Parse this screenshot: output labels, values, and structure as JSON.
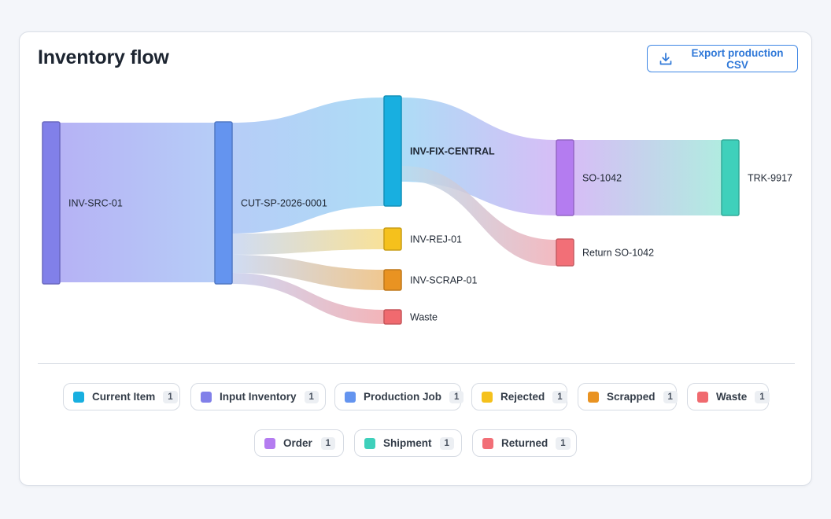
{
  "header": {
    "title": "Inventory flow",
    "export_label": "Export production CSV",
    "export_icon": "download-icon"
  },
  "nodes": [
    {
      "id": "INV-SRC-01",
      "label": "INV-SRC-01",
      "type": "input_inventory",
      "color": "#8180e9"
    },
    {
      "id": "CUT-SP-2026-0001",
      "label": "CUT-SP-2026-0001",
      "type": "production_job",
      "color": "#6494ef"
    },
    {
      "id": "INV-FIX-CENTRAL",
      "label": "INV-FIX-CENTRAL",
      "type": "current_item",
      "color": "#18afe0",
      "bold": true
    },
    {
      "id": "INV-REJ-01",
      "label": "INV-REJ-01",
      "type": "rejected",
      "color": "#f5c11c"
    },
    {
      "id": "INV-SCRAP-01",
      "label": "INV-SCRAP-01",
      "type": "scrapped",
      "color": "#e99322"
    },
    {
      "id": "Waste",
      "label": "Waste",
      "type": "waste",
      "color": "#f06a6f"
    },
    {
      "id": "SO-1042",
      "label": "SO-1042",
      "type": "order",
      "color": "#b47cf0"
    },
    {
      "id": "Return SO-1042",
      "label": "Return SO-1042",
      "type": "returned",
      "color": "#f26f77"
    },
    {
      "id": "TRK-9917",
      "label": "TRK-9917",
      "type": "shipment",
      "color": "#3fd0bb"
    }
  ],
  "links": [
    {
      "source": "INV-SRC-01",
      "target": "CUT-SP-2026-0001",
      "from_color": "#a9a5f3",
      "to_color": "#a9c4f6"
    },
    {
      "source": "CUT-SP-2026-0001",
      "target": "INV-FIX-CENTRAL",
      "from_color": "#a9c4f6",
      "to_color": "#9fd6f4"
    },
    {
      "source": "CUT-SP-2026-0001",
      "target": "INV-REJ-01",
      "from_color": "#c7d6f2",
      "to_color": "#f7dc87"
    },
    {
      "source": "CUT-SP-2026-0001",
      "target": "INV-SCRAP-01",
      "from_color": "#c7d6f2",
      "to_color": "#edbe7d"
    },
    {
      "source": "CUT-SP-2026-0001",
      "target": "Waste",
      "from_color": "#c7d0ee",
      "to_color": "#f1a8ad"
    },
    {
      "source": "INV-FIX-CENTRAL",
      "target": "SO-1042",
      "from_color": "#9fd6f4",
      "to_color": "#cfb2f4"
    },
    {
      "source": "INV-FIX-CENTRAL",
      "target": "Return SO-1042",
      "from_color": "#b9dcef",
      "to_color": "#f1aeb6"
    },
    {
      "source": "SO-1042",
      "target": "TRK-9917",
      "from_color": "#cfb2f4",
      "to_color": "#a3e8db"
    }
  ],
  "legend": [
    {
      "label": "Current Item",
      "count": "1",
      "color": "#18afe0"
    },
    {
      "label": "Input Inventory",
      "count": "1",
      "color": "#8180e9"
    },
    {
      "label": "Production Job",
      "count": "1",
      "color": "#6494ef"
    },
    {
      "label": "Rejected",
      "count": "1",
      "color": "#f5c11c"
    },
    {
      "label": "Scrapped",
      "count": "1",
      "color": "#e99322"
    },
    {
      "label": "Waste",
      "count": "1",
      "color": "#f06a6f"
    },
    {
      "label": "Order",
      "count": "1",
      "color": "#b47cf0"
    },
    {
      "label": "Shipment",
      "count": "1",
      "color": "#3fd0bb"
    },
    {
      "label": "Returned",
      "count": "1",
      "color": "#f26f77"
    }
  ]
}
